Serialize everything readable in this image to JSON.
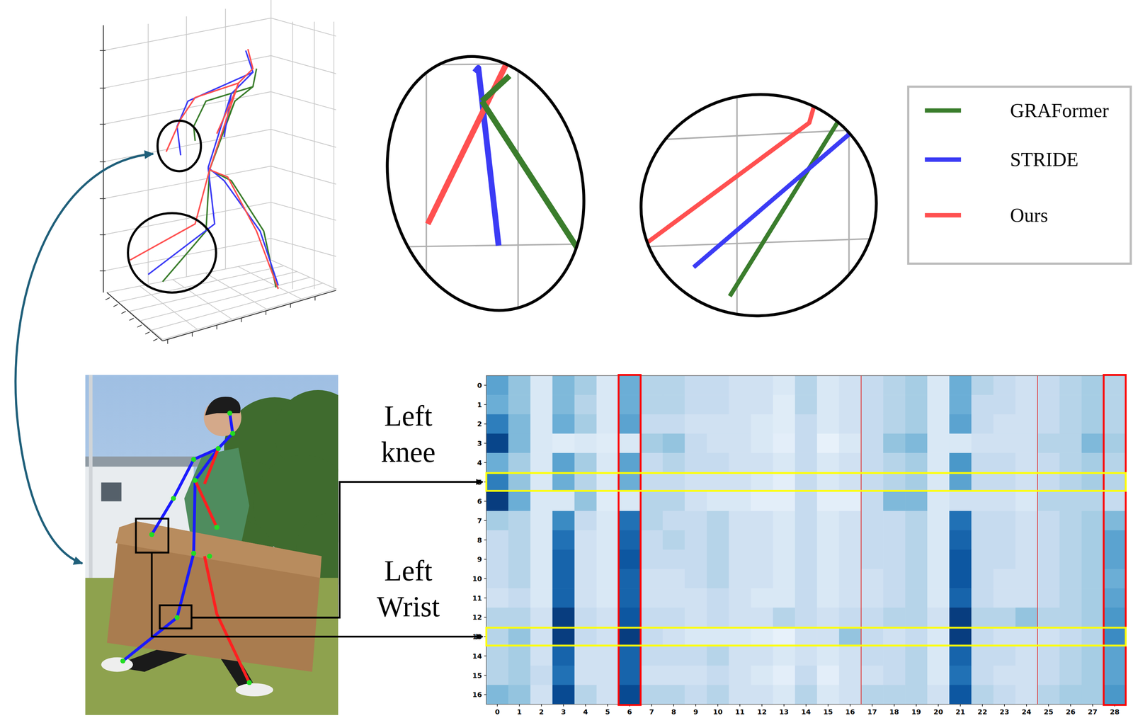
{
  "chart_data": {
    "type": "heatmap",
    "x": [
      0,
      1,
      2,
      3,
      4,
      5,
      6,
      7,
      8,
      9,
      10,
      11,
      12,
      13,
      14,
      15,
      16,
      17,
      18,
      19,
      20,
      21,
      22,
      23,
      24,
      25,
      26,
      27,
      28
    ],
    "y": [
      0,
      1,
      2,
      3,
      4,
      5,
      6,
      7,
      8,
      9,
      10,
      11,
      12,
      13,
      14,
      15,
      16
    ],
    "zlim": [
      0,
      1
    ],
    "cells": [
      [
        0.55,
        0.4,
        0.15,
        0.45,
        0.35,
        0.15,
        0.5,
        0.3,
        0.3,
        0.25,
        0.25,
        0.2,
        0.2,
        0.15,
        0.3,
        0.15,
        0.2,
        0.25,
        0.3,
        0.35,
        0.15,
        0.5,
        0.3,
        0.25,
        0.2,
        0.25,
        0.3,
        0.35,
        0.3
      ],
      [
        0.5,
        0.4,
        0.15,
        0.45,
        0.3,
        0.15,
        0.5,
        0.3,
        0.3,
        0.25,
        0.25,
        0.2,
        0.2,
        0.12,
        0.3,
        0.15,
        0.2,
        0.25,
        0.3,
        0.35,
        0.15,
        0.5,
        0.25,
        0.25,
        0.2,
        0.25,
        0.3,
        0.35,
        0.3
      ],
      [
        0.7,
        0.45,
        0.15,
        0.5,
        0.35,
        0.15,
        0.55,
        0.25,
        0.25,
        0.2,
        0.2,
        0.2,
        0.15,
        0.12,
        0.25,
        0.15,
        0.2,
        0.25,
        0.3,
        0.35,
        0.15,
        0.55,
        0.25,
        0.2,
        0.2,
        0.25,
        0.3,
        0.35,
        0.3
      ],
      [
        0.92,
        0.45,
        0.15,
        0.12,
        0.15,
        0.12,
        0.15,
        0.35,
        0.4,
        0.25,
        0.2,
        0.2,
        0.15,
        0.1,
        0.25,
        0.08,
        0.15,
        0.25,
        0.4,
        0.45,
        0.15,
        0.15,
        0.2,
        0.2,
        0.2,
        0.3,
        0.3,
        0.45,
        0.35
      ],
      [
        0.5,
        0.35,
        0.15,
        0.55,
        0.35,
        0.15,
        0.55,
        0.25,
        0.3,
        0.25,
        0.25,
        0.2,
        0.2,
        0.15,
        0.25,
        0.15,
        0.2,
        0.25,
        0.3,
        0.35,
        0.15,
        0.6,
        0.25,
        0.25,
        0.2,
        0.25,
        0.3,
        0.35,
        0.3
      ],
      [
        0.7,
        0.4,
        0.15,
        0.5,
        0.3,
        0.15,
        0.5,
        0.25,
        0.25,
        0.2,
        0.2,
        0.2,
        0.15,
        0.1,
        0.25,
        0.15,
        0.2,
        0.25,
        0.3,
        0.35,
        0.15,
        0.55,
        0.25,
        0.25,
        0.2,
        0.25,
        0.3,
        0.35,
        0.3
      ],
      [
        0.95,
        0.5,
        0.15,
        0.15,
        0.4,
        0.12,
        0.15,
        0.3,
        0.3,
        0.2,
        0.15,
        0.15,
        0.1,
        0.1,
        0.25,
        0.1,
        0.1,
        0.25,
        0.45,
        0.45,
        0.15,
        0.2,
        0.2,
        0.2,
        0.15,
        0.3,
        0.3,
        0.3,
        0.25
      ],
      [
        0.35,
        0.3,
        0.15,
        0.65,
        0.25,
        0.15,
        0.75,
        0.3,
        0.25,
        0.25,
        0.3,
        0.2,
        0.2,
        0.15,
        0.25,
        0.15,
        0.2,
        0.25,
        0.25,
        0.3,
        0.15,
        0.75,
        0.25,
        0.25,
        0.2,
        0.25,
        0.3,
        0.35,
        0.45
      ],
      [
        0.25,
        0.3,
        0.15,
        0.75,
        0.2,
        0.15,
        0.8,
        0.25,
        0.3,
        0.25,
        0.3,
        0.2,
        0.2,
        0.15,
        0.25,
        0.15,
        0.2,
        0.25,
        0.25,
        0.3,
        0.15,
        0.8,
        0.25,
        0.25,
        0.2,
        0.25,
        0.3,
        0.35,
        0.55
      ],
      [
        0.25,
        0.3,
        0.15,
        0.8,
        0.2,
        0.15,
        0.85,
        0.25,
        0.25,
        0.25,
        0.3,
        0.2,
        0.2,
        0.15,
        0.25,
        0.15,
        0.2,
        0.25,
        0.25,
        0.3,
        0.15,
        0.85,
        0.25,
        0.25,
        0.2,
        0.25,
        0.3,
        0.35,
        0.55
      ],
      [
        0.25,
        0.3,
        0.15,
        0.8,
        0.2,
        0.15,
        0.8,
        0.2,
        0.2,
        0.25,
        0.3,
        0.2,
        0.2,
        0.15,
        0.25,
        0.15,
        0.2,
        0.2,
        0.25,
        0.3,
        0.15,
        0.85,
        0.25,
        0.2,
        0.2,
        0.25,
        0.3,
        0.35,
        0.5
      ],
      [
        0.2,
        0.25,
        0.15,
        0.8,
        0.2,
        0.15,
        0.8,
        0.2,
        0.2,
        0.2,
        0.25,
        0.2,
        0.15,
        0.15,
        0.25,
        0.15,
        0.2,
        0.2,
        0.25,
        0.3,
        0.15,
        0.8,
        0.25,
        0.2,
        0.2,
        0.25,
        0.3,
        0.35,
        0.55
      ],
      [
        0.3,
        0.3,
        0.2,
        0.95,
        0.25,
        0.2,
        0.85,
        0.25,
        0.25,
        0.2,
        0.25,
        0.2,
        0.2,
        0.3,
        0.25,
        0.2,
        0.25,
        0.25,
        0.3,
        0.3,
        0.2,
        0.95,
        0.3,
        0.3,
        0.4,
        0.3,
        0.3,
        0.35,
        0.6
      ],
      [
        0.3,
        0.4,
        0.2,
        0.95,
        0.25,
        0.2,
        0.95,
        0.25,
        0.2,
        0.15,
        0.15,
        0.15,
        0.12,
        0.08,
        0.2,
        0.2,
        0.4,
        0.25,
        0.2,
        0.25,
        0.15,
        0.95,
        0.25,
        0.2,
        0.2,
        0.2,
        0.25,
        0.3,
        0.65
      ],
      [
        0.3,
        0.35,
        0.2,
        0.8,
        0.2,
        0.2,
        0.8,
        0.25,
        0.25,
        0.25,
        0.3,
        0.2,
        0.2,
        0.15,
        0.2,
        0.15,
        0.2,
        0.25,
        0.25,
        0.3,
        0.15,
        0.8,
        0.25,
        0.25,
        0.2,
        0.25,
        0.3,
        0.35,
        0.55
      ],
      [
        0.3,
        0.35,
        0.25,
        0.75,
        0.2,
        0.2,
        0.8,
        0.2,
        0.2,
        0.2,
        0.25,
        0.2,
        0.15,
        0.1,
        0.25,
        0.1,
        0.2,
        0.2,
        0.25,
        0.3,
        0.15,
        0.75,
        0.25,
        0.2,
        0.2,
        0.25,
        0.3,
        0.35,
        0.55
      ],
      [
        0.45,
        0.4,
        0.2,
        0.9,
        0.3,
        0.2,
        0.9,
        0.3,
        0.3,
        0.25,
        0.3,
        0.2,
        0.2,
        0.15,
        0.3,
        0.15,
        0.2,
        0.3,
        0.3,
        0.3,
        0.2,
        0.85,
        0.3,
        0.25,
        0.2,
        0.3,
        0.35,
        0.35,
        0.6
      ]
    ],
    "highlight_columns": [
      6,
      28
    ],
    "highlight_rows": [
      5,
      13
    ],
    "group_boundaries": [
      16.5,
      24.5
    ]
  },
  "legend": {
    "entries": [
      {
        "label": "GRAFormer",
        "color": "#3a7d2c"
      },
      {
        "label": "STRIDE",
        "color": "#3b3bf5"
      },
      {
        "label": "Ours",
        "color": "#ff5050"
      }
    ]
  },
  "annotations": [
    {
      "label": "Left knee",
      "row": 5
    },
    {
      "label": "Left Wrist",
      "row": 13
    }
  ]
}
